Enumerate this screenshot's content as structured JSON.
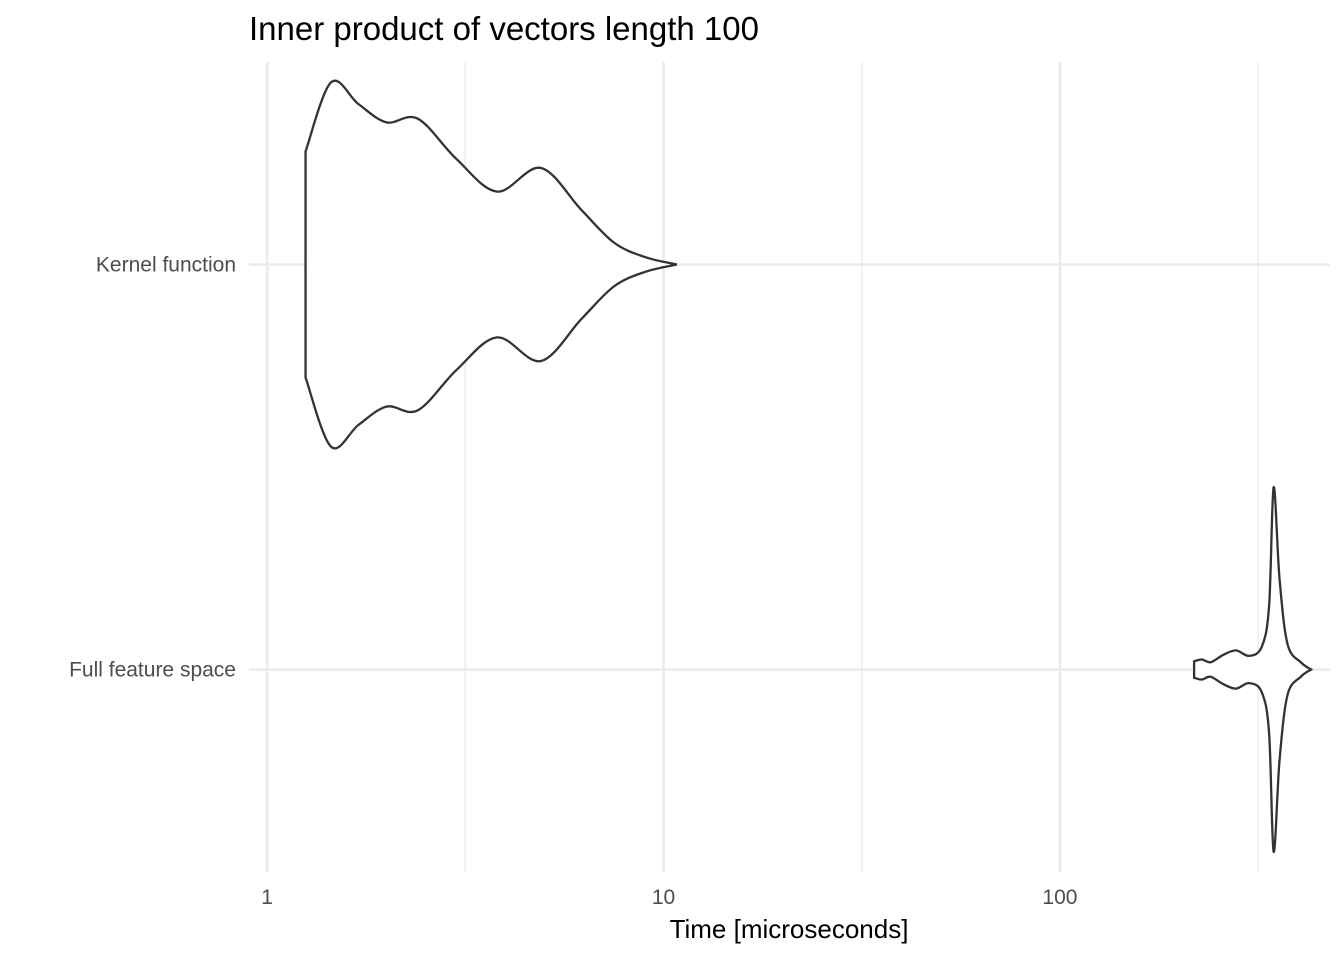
{
  "chart_data": {
    "type": "violin",
    "title": "Inner product of vectors length 100",
    "xlabel": "Time [microseconds]",
    "ylabel": "",
    "x_scale": "log10",
    "xlim": [
      0.9,
      480
    ],
    "x_ticks": [
      {
        "value": 1,
        "label": "1"
      },
      {
        "value": 10,
        "label": "10"
      },
      {
        "value": 100,
        "label": "100"
      }
    ],
    "x_minor_ticks": [
      3.162,
      31.62,
      316.2
    ],
    "grid": true,
    "legend": "none",
    "categories": [
      "Full feature space",
      "Kernel function"
    ],
    "series": [
      {
        "category": "Kernel function",
        "min": 1.25,
        "max": 10.8,
        "density_profile": [
          {
            "x": 1.25,
            "w": 0.62
          },
          {
            "x": 1.45,
            "w": 1.0
          },
          {
            "x": 1.7,
            "w": 0.88
          },
          {
            "x": 2.0,
            "w": 0.78
          },
          {
            "x": 2.4,
            "w": 0.8
          },
          {
            "x": 3.0,
            "w": 0.58
          },
          {
            "x": 3.8,
            "w": 0.4
          },
          {
            "x": 4.9,
            "w": 0.53
          },
          {
            "x": 6.2,
            "w": 0.3
          },
          {
            "x": 7.5,
            "w": 0.12
          },
          {
            "x": 9.0,
            "w": 0.04
          },
          {
            "x": 10.8,
            "w": 0.0
          }
        ]
      },
      {
        "category": "Full feature space",
        "min": 218,
        "max": 430,
        "density_profile": [
          {
            "x": 218,
            "w": 0.045
          },
          {
            "x": 228,
            "w": 0.055
          },
          {
            "x": 240,
            "w": 0.04
          },
          {
            "x": 258,
            "w": 0.08
          },
          {
            "x": 278,
            "w": 0.105
          },
          {
            "x": 300,
            "w": 0.075
          },
          {
            "x": 323,
            "w": 0.125
          },
          {
            "x": 337,
            "w": 0.35
          },
          {
            "x": 346,
            "w": 1.0
          },
          {
            "x": 358,
            "w": 0.5
          },
          {
            "x": 375,
            "w": 0.14
          },
          {
            "x": 405,
            "w": 0.04
          },
          {
            "x": 430,
            "w": 0.0
          }
        ]
      }
    ]
  }
}
